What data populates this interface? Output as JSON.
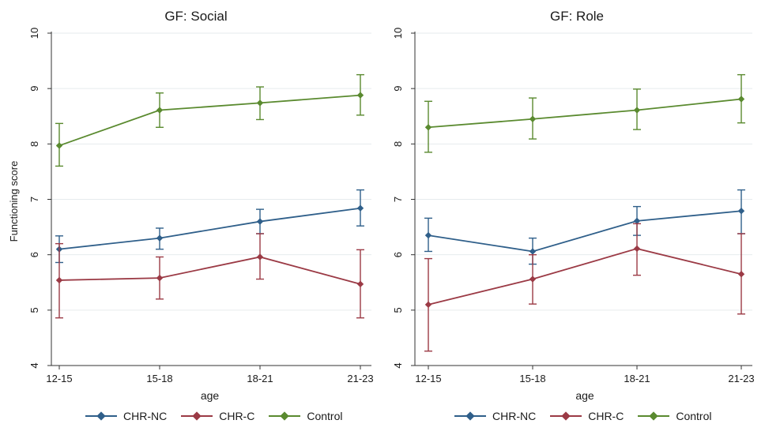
{
  "figure": {
    "ylabel": "Functioning score",
    "xlabel": "age"
  },
  "legend": [
    {
      "name": "CHR-NC",
      "color": "#2f5f8a"
    },
    {
      "name": "CHR-C",
      "color": "#9b3a45"
    },
    {
      "name": "Control",
      "color": "#5a8a2f"
    }
  ],
  "chart_data": [
    {
      "type": "line",
      "title": "GF: Social",
      "xlabel": "age",
      "ylabel": "Functioning score",
      "categories": [
        "12-15",
        "15-18",
        "18-21",
        "21-23"
      ],
      "ylim": [
        4,
        10
      ],
      "yticks": [
        4,
        5,
        6,
        7,
        8,
        9,
        10
      ],
      "grid": true,
      "legend_position": "bottom",
      "series": [
        {
          "name": "CHR-NC",
          "color": "#2f5f8a",
          "values": [
            6.1,
            6.3,
            6.6,
            6.84
          ],
          "lower": [
            5.86,
            6.1,
            6.38,
            6.52
          ],
          "upper": [
            6.34,
            6.48,
            6.82,
            7.17
          ]
        },
        {
          "name": "CHR-C",
          "color": "#9b3a45",
          "values": [
            5.54,
            5.58,
            5.96,
            5.47
          ],
          "lower": [
            4.86,
            5.2,
            5.56,
            4.86
          ],
          "upper": [
            6.2,
            5.96,
            6.38,
            6.09
          ]
        },
        {
          "name": "Control",
          "color": "#5a8a2f",
          "values": [
            7.97,
            8.61,
            8.74,
            8.88
          ],
          "lower": [
            7.6,
            8.3,
            8.44,
            8.52
          ],
          "upper": [
            8.37,
            8.92,
            9.03,
            9.25
          ]
        }
      ]
    },
    {
      "type": "line",
      "title": "GF: Role",
      "xlabel": "age",
      "ylabel": "",
      "categories": [
        "12-15",
        "15-18",
        "18-21",
        "21-23"
      ],
      "ylim": [
        4,
        10
      ],
      "yticks": [
        4,
        5,
        6,
        7,
        8,
        9,
        10
      ],
      "grid": true,
      "legend_position": "bottom",
      "series": [
        {
          "name": "CHR-NC",
          "color": "#2f5f8a",
          "values": [
            6.35,
            6.06,
            6.61,
            6.79
          ],
          "lower": [
            6.06,
            5.83,
            6.35,
            6.38
          ],
          "upper": [
            6.66,
            6.3,
            6.87,
            7.17
          ]
        },
        {
          "name": "CHR-C",
          "color": "#9b3a45",
          "values": [
            5.1,
            5.56,
            6.11,
            5.65
          ],
          "lower": [
            4.26,
            5.11,
            5.63,
            4.93
          ],
          "upper": [
            5.93,
            6.0,
            6.56,
            6.38
          ]
        },
        {
          "name": "Control",
          "color": "#5a8a2f",
          "values": [
            8.3,
            8.45,
            8.61,
            8.81
          ],
          "lower": [
            7.85,
            8.09,
            8.26,
            8.38
          ],
          "upper": [
            8.77,
            8.83,
            8.99,
            9.25
          ]
        }
      ]
    }
  ]
}
